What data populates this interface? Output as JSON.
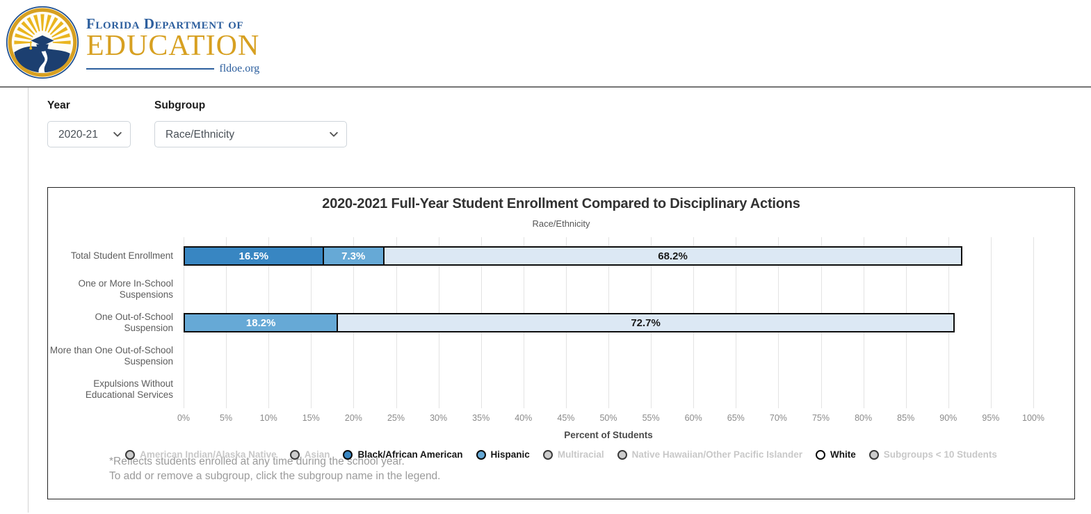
{
  "logo": {
    "line1": "Florida Department of",
    "line2": "EDUCATION",
    "line3": "fldoe.org"
  },
  "filters": {
    "year": {
      "label": "Year",
      "value": "2020-21"
    },
    "subgroup": {
      "label": "Subgroup",
      "value": "Race/Ethnicity"
    }
  },
  "chart_data": {
    "type": "bar",
    "orientation": "horizontal",
    "stacked": true,
    "title": "2020-2021 Full-Year Student Enrollment Compared to Disciplinary Actions",
    "subtitle": "Race/Ethnicity",
    "xlabel": "Percent of Students",
    "xlim": [
      0,
      100
    ],
    "tick_step": 5,
    "grid": true,
    "legend_position": "bottom",
    "x_ticks": [
      "0%",
      "5%",
      "10%",
      "15%",
      "20%",
      "25%",
      "30%",
      "35%",
      "40%",
      "45%",
      "50%",
      "55%",
      "60%",
      "65%",
      "70%",
      "75%",
      "80%",
      "85%",
      "90%",
      "95%",
      "100%"
    ],
    "categories": [
      "Total Student Enrollment",
      "One or More In-School Suspensions",
      "One Out-of-School Suspension",
      "More than One Out-of-School Suspension",
      "Expulsions Without Educational Services"
    ],
    "series": [
      {
        "name": "Black/African American",
        "color": "#3886c2",
        "label_color": "#ffffff",
        "values": [
          16.5,
          null,
          null,
          null,
          null
        ]
      },
      {
        "name": "Hispanic",
        "color": "#66a9d6",
        "label_color": "#ffffff",
        "values": [
          7.3,
          null,
          18.2,
          null,
          null
        ]
      },
      {
        "name": "White",
        "color": "#dce8f4",
        "label_color": "#1a1a1a",
        "values": [
          68.2,
          null,
          72.7,
          null,
          null
        ]
      }
    ]
  },
  "legend": {
    "items": [
      {
        "label": "American Indian/Alaska Native",
        "color": "#cccccc",
        "active": false
      },
      {
        "label": "Asian",
        "color": "#cccccc",
        "active": false
      },
      {
        "label": "Black/African American",
        "color": "#3886c2",
        "active": true
      },
      {
        "label": "Hispanic",
        "color": "#66a9d6",
        "active": true
      },
      {
        "label": "Multiracial",
        "color": "#cccccc",
        "active": false
      },
      {
        "label": "Native Hawaiian/Other Pacific Islander",
        "color": "#cccccc",
        "active": false
      },
      {
        "label": "White",
        "color": "#ffffff",
        "active": true
      },
      {
        "label": "Subgroups < 10 Students",
        "color": "#cccccc",
        "active": false
      }
    ]
  },
  "footnotes": {
    "line1": "*Reflects students enrolled at any time during the school year.",
    "line2": "To add or remove a subgroup, click the subgroup name in the legend."
  }
}
